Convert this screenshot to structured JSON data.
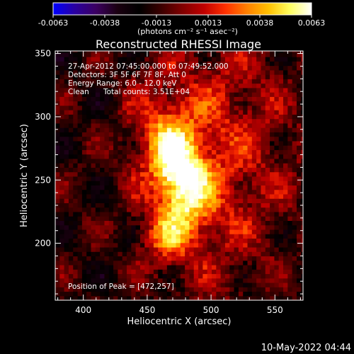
{
  "colorbar": {
    "ticks": [
      "-0.0063",
      "-0.0038",
      "-0.0013",
      "0.0013",
      "0.0038",
      "0.0063"
    ],
    "units": "(photons cm⁻² s⁻¹ asec⁻²)",
    "colormap": [
      "#0000ff",
      "#2a00a0",
      "#3b0060",
      "#1a0010",
      "#000000",
      "#3a0000",
      "#800000",
      "#c00000",
      "#ff3000",
      "#ff8000",
      "#ffc000",
      "#ffff60",
      "#ffffff"
    ]
  },
  "chart_data": {
    "type": "heatmap",
    "title": "Reconstructed RHESSI Image",
    "xlabel": "Heliocentric X (arcsec)",
    "ylabel": "Heliocentric Y (arcsec)",
    "xlim": [
      378,
      572
    ],
    "ylim": [
      155,
      352
    ],
    "xticks": [
      400,
      450,
      500,
      550
    ],
    "yticks": [
      200,
      250,
      300,
      350
    ],
    "value_range": [
      -0.0063,
      0.0063
    ],
    "peak": {
      "x": 472,
      "y": 257
    },
    "annotations": [
      "27-Apr-2012 07:45:00.000 to 07:49:52.000",
      "Detectors: 3F 5F 6F 7F 8F, Att 0",
      "Energy Range: 6.0 - 12.0 keV",
      "Clean",
      "Total counts: 3.51E+04"
    ],
    "peak_label": "Position of Peak = [472,257]"
  },
  "footer": {
    "timestamp": "10-May-2022 04:44"
  }
}
